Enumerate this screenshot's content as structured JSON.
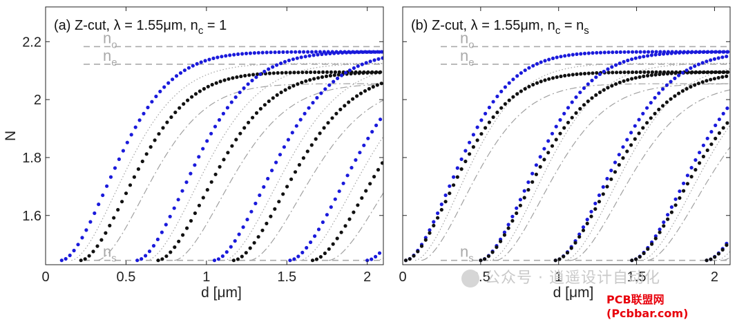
{
  "chart_data": [
    {
      "type": "scatter",
      "title": "(a)  Z-cut,  λ = 1.55μm,  n",
      "title_sub": "c",
      "title_tail": " = 1",
      "xlabel": "d [μm]",
      "ylabel": "N",
      "xlim": [
        0,
        2.1
      ],
      "ylim": [
        1.43,
        2.32
      ],
      "xticks": [
        0,
        0.5,
        1,
        1.5,
        2
      ],
      "xtick_labels": [
        "0",
        "0.5",
        "1",
        "1.5",
        "2"
      ],
      "yticks": [
        1.6,
        1.8,
        2.0,
        2.2
      ],
      "ytick_labels": [
        "1.6",
        "1.8",
        "2",
        "2.2"
      ],
      "grid": false,
      "reference_lines": [
        {
          "label": "n",
          "sub": "o",
          "y": 2.183
        },
        {
          "label": "n",
          "sub": "e",
          "y": 2.122
        },
        {
          "label": "n",
          "sub": "s",
          "y": 1.445
        }
      ],
      "series": [
        {
          "color": "#1a1adb",
          "mode": 0,
          "cutoff": 0.1,
          "n_inf": 2.165
        },
        {
          "color": "#111111",
          "mode": 0,
          "cutoff": 0.22,
          "n_inf": 2.095
        },
        {
          "color": "#1a1adb",
          "mode": 1,
          "cutoff": 0.57,
          "n_inf": 2.165
        },
        {
          "color": "#111111",
          "mode": 1,
          "cutoff": 0.7,
          "n_inf": 2.095
        },
        {
          "color": "#1a1adb",
          "mode": 2,
          "cutoff": 1.05,
          "n_inf": 2.165
        },
        {
          "color": "#111111",
          "mode": 2,
          "cutoff": 1.17,
          "n_inf": 2.095
        },
        {
          "color": "#1a1adb",
          "mode": 3,
          "cutoff": 1.52,
          "n_inf": 2.165
        },
        {
          "color": "#111111",
          "mode": 3,
          "cutoff": 1.66,
          "n_inf": 2.095
        },
        {
          "color": "#1a1adb",
          "mode": 4,
          "cutoff": 2.0,
          "n_inf": 2.165
        }
      ]
    },
    {
      "type": "scatter",
      "title": "(b)  Z-cut,  λ = 1.55μm,  n",
      "title_sub": "c",
      "title_tail": " = n",
      "title_tail_sub": "s",
      "xlabel": "d [μm]",
      "ylabel": "",
      "xlim": [
        0,
        2.1
      ],
      "ylim": [
        1.43,
        2.32
      ],
      "xticks": [
        0,
        0.5,
        1,
        1.5,
        2
      ],
      "xtick_labels": [
        "0",
        "0.5",
        "1",
        "1.5",
        "2"
      ],
      "yticks": [
        1.6,
        1.8,
        2.0,
        2.2
      ],
      "ytick_labels": [
        "",
        "",
        "",
        ""
      ],
      "grid": false,
      "reference_lines": [
        {
          "label": "n",
          "sub": "o",
          "y": 2.183
        },
        {
          "label": "n",
          "sub": "e",
          "y": 2.122
        },
        {
          "label": "n",
          "sub": "s",
          "y": 1.445
        }
      ],
      "series": [
        {
          "color": "#1a1adb",
          "mode": 0,
          "cutoff": 0.02,
          "n_inf": 2.165
        },
        {
          "color": "#111111",
          "mode": 0,
          "cutoff": 0.02,
          "n_inf": 2.095
        },
        {
          "color": "#1a1adb",
          "mode": 1,
          "cutoff": 0.5,
          "n_inf": 2.165
        },
        {
          "color": "#111111",
          "mode": 1,
          "cutoff": 0.5,
          "n_inf": 2.095
        },
        {
          "color": "#1a1adb",
          "mode": 2,
          "cutoff": 0.98,
          "n_inf": 2.165
        },
        {
          "color": "#111111",
          "mode": 2,
          "cutoff": 0.98,
          "n_inf": 2.095
        },
        {
          "color": "#1a1adb",
          "mode": 3,
          "cutoff": 1.47,
          "n_inf": 2.165
        },
        {
          "color": "#111111",
          "mode": 3,
          "cutoff": 1.47,
          "n_inf": 2.095
        },
        {
          "color": "#1a1adb",
          "mode": 4,
          "cutoff": 1.95,
          "n_inf": 2.165
        },
        {
          "color": "#111111",
          "mode": 4,
          "cutoff": 1.95,
          "n_inf": 2.095
        }
      ]
    }
  ],
  "overlay": {
    "watermark": "公众号 · 逍遥设计自动化",
    "credit": "PCB联盟网 (Pcbbar.com)"
  }
}
